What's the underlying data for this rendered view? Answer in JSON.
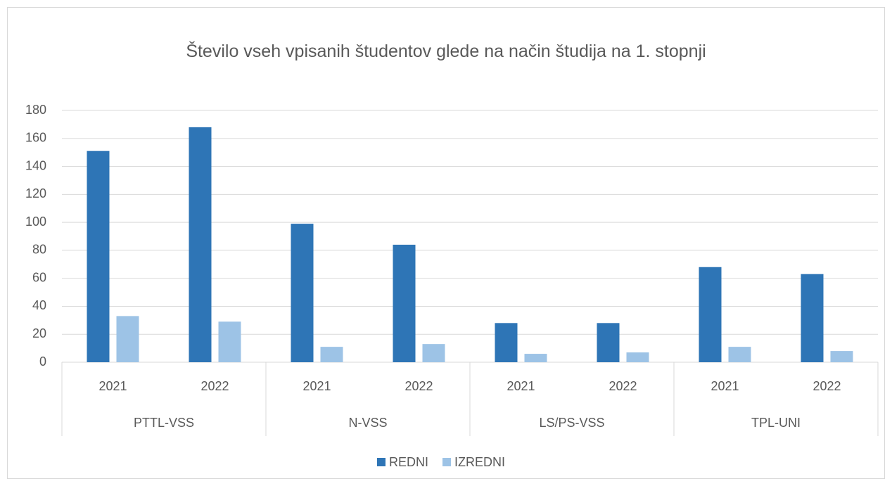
{
  "chart_data": {
    "type": "bar",
    "title": "Število vseh vpisanih študentov glede na način študija na 1. stopnji",
    "categories": [
      "2021",
      "2022",
      "2021",
      "2022",
      "2021",
      "2022",
      "2021",
      "2022"
    ],
    "groups": [
      "PTTL-VSS",
      "N-VSS",
      "LS/PS-VSS",
      "TPL-UNI"
    ],
    "series": [
      {
        "name": "REDNI",
        "color": "#2e75b6",
        "values": [
          151,
          168,
          99,
          84,
          28,
          28,
          68,
          63
        ]
      },
      {
        "name": "IZREDNI",
        "color": "#9dc3e6",
        "values": [
          33,
          29,
          11,
          13,
          6,
          7,
          11,
          8
        ]
      }
    ],
    "ylim": [
      0,
      180
    ],
    "yticks": [
      0,
      20,
      40,
      60,
      80,
      100,
      120,
      140,
      160,
      180
    ],
    "grid": true,
    "legend": "bottom"
  }
}
